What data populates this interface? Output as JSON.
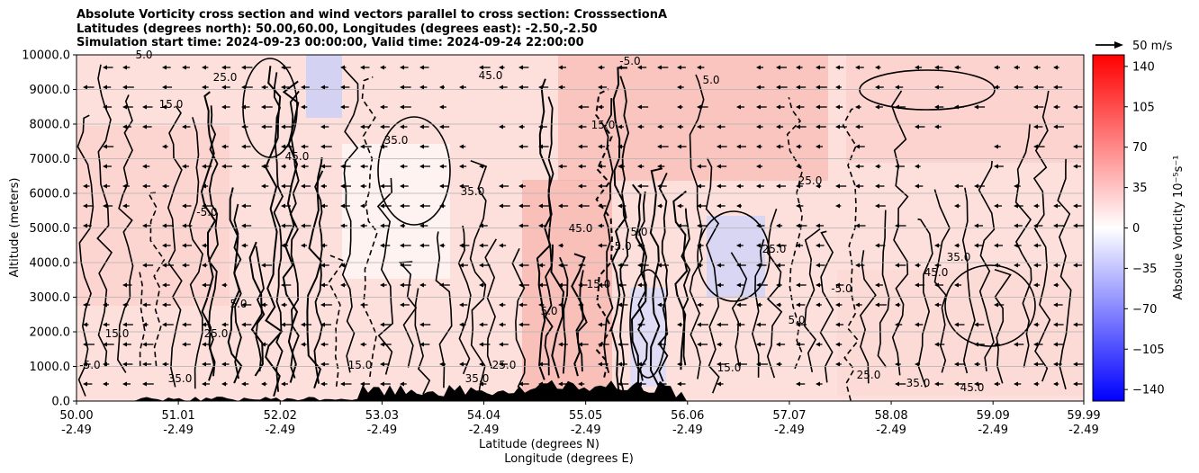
{
  "title_lines": [
    "Absolute Vorticity cross section and wind vectors parallel to cross section: CrosssectionA",
    "Latitudes (degrees north): 50.00,60.00, Longitudes (degrees east): -2.50,-2.50",
    "Simulation start time: 2024-09-23 00:00:00, Valid time: 2024-09-24 22:00:00"
  ],
  "chart_data": {
    "type": "heatmap",
    "ylabel": "Altitude (meters)",
    "xlabel_lines": [
      "Latitude (degrees N)",
      "Longitude (degrees E)"
    ],
    "x_ticks_lat": [
      "50.00",
      "51.01",
      "52.02",
      "53.03",
      "54.04",
      "55.05",
      "56.06",
      "57.07",
      "58.08",
      "59.09",
      "59.99"
    ],
    "x_ticks_lon": [
      "-2.49",
      "-2.49",
      "-2.49",
      "-2.49",
      "-2.49",
      "-2.49",
      "-2.49",
      "-2.49",
      "-2.49",
      "-2.49",
      "-2.49"
    ],
    "xlim": [
      50.0,
      59.99
    ],
    "y_ticks": [
      "0.0",
      "1000.0",
      "2000.0",
      "3000.0",
      "4000.0",
      "5000.0",
      "6000.0",
      "7000.0",
      "8000.0",
      "9000.0",
      "10000.0"
    ],
    "ylim": [
      0,
      10000
    ],
    "grid": "horizontal",
    "colorbar": {
      "label": "Absolue Vorticity 10⁻⁵s⁻¹",
      "ticks": [
        "140",
        "105",
        "70",
        "35",
        "0",
        "−35",
        "−70",
        "−105",
        "−140"
      ],
      "range": [
        -150,
        150
      ],
      "colormap": "bwr"
    },
    "quiver_key": "50 m/s",
    "contour_labels": [
      "5.0",
      "15.0",
      "25.0",
      "35.0",
      "45.0",
      "-5.0"
    ]
  },
  "colors": {
    "positive": "#ff0000",
    "negative": "#0000ff",
    "neutral": "#ffffff",
    "contour": "#000000",
    "terrain": "#000000"
  }
}
